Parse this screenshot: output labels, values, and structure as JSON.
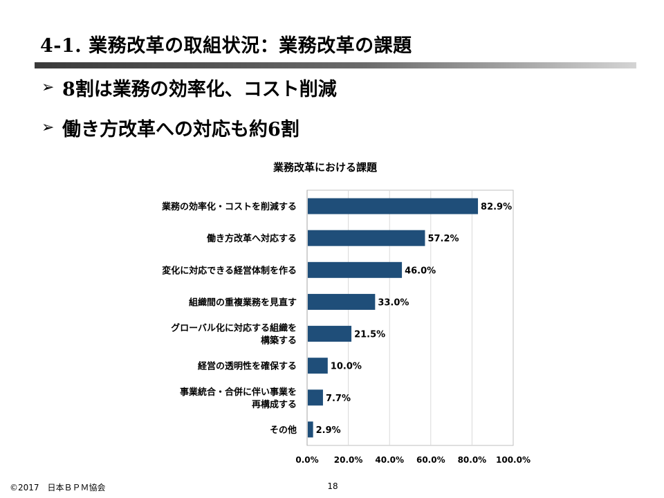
{
  "slide": {
    "title": "4-1. 業務改革の取組状況：業務改革の課題",
    "bullets": [
      {
        "marker": "➢",
        "text": "8割は業務の効率化、コスト削減"
      },
      {
        "marker": "➢",
        "text": "働き方改革への対応も約6割"
      }
    ]
  },
  "chart_data": {
    "type": "bar",
    "orientation": "horizontal",
    "title": "業務改革における課題",
    "categories": [
      [
        "業務の効率化・コストを削減する"
      ],
      [
        "働き方改革へ対応する"
      ],
      [
        "変化に対応できる経営体制を作る"
      ],
      [
        "組織間の重複業務を見直す"
      ],
      [
        "グローバル化に対応する組織を",
        "構築する"
      ],
      [
        "経営の透明性を確保する"
      ],
      [
        "事業統合・合併に伴い事業を",
        "再構成する"
      ],
      [
        "その他"
      ]
    ],
    "values": [
      82.9,
      57.2,
      46.0,
      33.0,
      21.5,
      10.0,
      7.7,
      2.9
    ],
    "value_labels": [
      "82.9%",
      "57.2%",
      "46.0%",
      "33.0%",
      "21.5%",
      "10.0%",
      "7.7%",
      "2.9%"
    ],
    "xlim": [
      0,
      100
    ],
    "xticks": [
      0,
      20,
      40,
      60,
      80,
      100
    ],
    "xtick_labels": [
      "0.0%",
      "20.0%",
      "40.0%",
      "60.0%",
      "80.0%",
      "100.0%"
    ],
    "grid": true,
    "bar_color": "#1f4e79",
    "gridline_color": "#d9d9d9"
  },
  "footer": {
    "copyright": "©2017　日本ＢＰＭ協会",
    "page_number": "18"
  }
}
